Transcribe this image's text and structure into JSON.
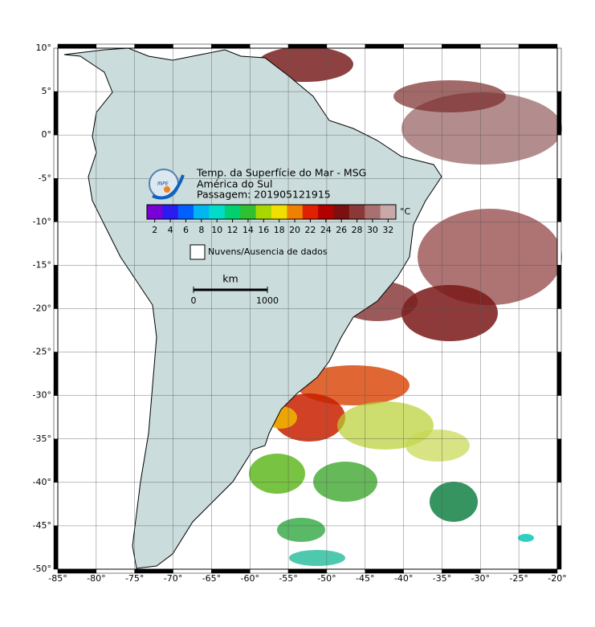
{
  "map": {
    "title_lines": [
      "Temp. da Superfície do Mar - MSG",
      "América do Sul",
      "Passagem: 201905121915"
    ],
    "logo": "INPE",
    "xlim": [
      -85,
      -20
    ],
    "ylim": [
      -50,
      10
    ],
    "xticks": [
      {
        "value": -85,
        "label": "-85°"
      },
      {
        "value": -80,
        "label": "-80°"
      },
      {
        "value": -75,
        "label": "-75°"
      },
      {
        "value": -70,
        "label": "-70°"
      },
      {
        "value": -65,
        "label": "-65°"
      },
      {
        "value": -60,
        "label": "-60°"
      },
      {
        "value": -55,
        "label": "-55°"
      },
      {
        "value": -50,
        "label": "-50°"
      },
      {
        "value": -45,
        "label": "-45°"
      },
      {
        "value": -40,
        "label": "-40°"
      },
      {
        "value": -35,
        "label": "-35°"
      },
      {
        "value": -30,
        "label": "-30°"
      },
      {
        "value": -25,
        "label": "-25°"
      },
      {
        "value": -20,
        "label": "-20°"
      }
    ],
    "yticks": [
      {
        "value": 10,
        "label": "10°"
      },
      {
        "value": 5,
        "label": "5°"
      },
      {
        "value": 0,
        "label": "0°"
      },
      {
        "value": -5,
        "label": "-5°"
      },
      {
        "value": -10,
        "label": "-10°"
      },
      {
        "value": -15,
        "label": "-15°"
      },
      {
        "value": -20,
        "label": "-20°"
      },
      {
        "value": -25,
        "label": "-25°"
      },
      {
        "value": -30,
        "label": "-30°"
      },
      {
        "value": -35,
        "label": "-35°"
      },
      {
        "value": -40,
        "label": "-40°"
      },
      {
        "value": -45,
        "label": "-45°"
      },
      {
        "value": -50,
        "label": "-50°"
      }
    ],
    "grid": true,
    "colorbar": {
      "unit": "°C",
      "range": [
        1,
        33
      ],
      "ticks": [
        2,
        4,
        6,
        8,
        10,
        12,
        14,
        16,
        18,
        20,
        22,
        24,
        26,
        28,
        30,
        32
      ],
      "colors": [
        "#7a00d8",
        "#2b1bf0",
        "#0060ff",
        "#00b6f0",
        "#00dcc8",
        "#00d070",
        "#30c030",
        "#a8d800",
        "#f0e000",
        "#f08000",
        "#e02000",
        "#b00000",
        "#7a1010",
        "#8a3838",
        "#a87070",
        "#c8a8a8"
      ]
    },
    "legend_no_data": "Nuvens/Ausencia de dados",
    "scale_bar": {
      "unit": "km",
      "ticks": [
        0,
        1000
      ]
    }
  }
}
